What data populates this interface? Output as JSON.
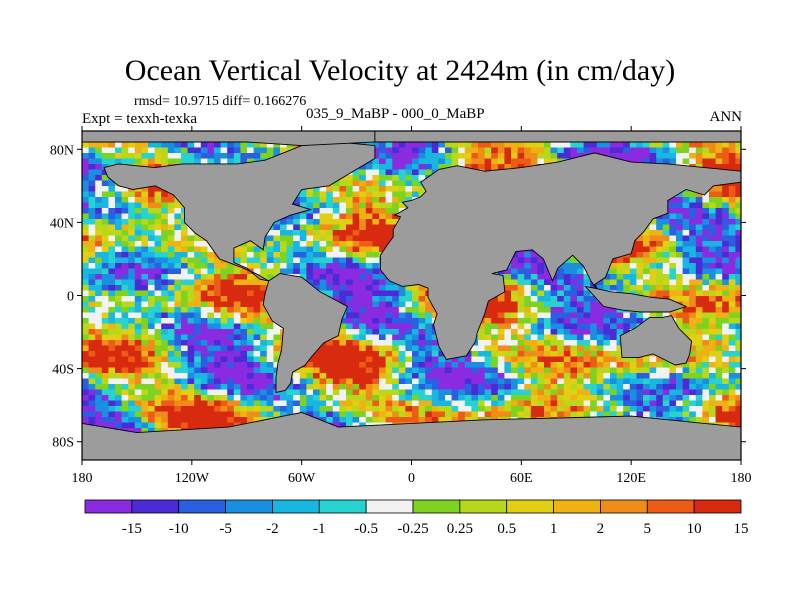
{
  "title": "Ocean Vertical Velocity at 2424m (in cm/day)",
  "stats": "rmsd= 10.9715 diff= 0.166276",
  "expt": "Expt = texxh-texka",
  "case": "035_9_MaBP - 000_0_MaBP",
  "season": "ANN",
  "map": {
    "projection": "cylindrical-equidistant",
    "lon_range": [
      -180,
      180
    ],
    "lat_range": [
      -90,
      90
    ],
    "land_color": "#9c9c9c",
    "lat_labels": [
      {
        "lat": 80,
        "text": "80N"
      },
      {
        "lat": 40,
        "text": "40N"
      },
      {
        "lat": 0,
        "text": "0"
      },
      {
        "lat": -40,
        "text": "40S"
      },
      {
        "lat": -80,
        "text": "80S"
      }
    ],
    "lon_labels": [
      {
        "lon": -180,
        "text": "180"
      },
      {
        "lon": -120,
        "text": "120W"
      },
      {
        "lon": -60,
        "text": "60W"
      },
      {
        "lon": 0,
        "text": "0"
      },
      {
        "lon": 60,
        "text": "60E"
      },
      {
        "lon": 120,
        "text": "120E"
      },
      {
        "lon": 180,
        "text": "180"
      }
    ]
  },
  "colorbar": {
    "colors": [
      "#8a2be2",
      "#4b2bd6",
      "#2a5fe0",
      "#1a8fe0",
      "#18b6e0",
      "#26d3d0",
      "#f2f2f2",
      "#7ed321",
      "#b8d81c",
      "#e0cf12",
      "#f0b212",
      "#f08c18",
      "#ec5c16",
      "#d82a0e"
    ],
    "labels": [
      "-15",
      "-10",
      "-5",
      "-2",
      "-1",
      "-0.5",
      "-0.25",
      "0.25",
      "0.5",
      "1",
      "2",
      "5",
      "10",
      "15"
    ]
  }
}
